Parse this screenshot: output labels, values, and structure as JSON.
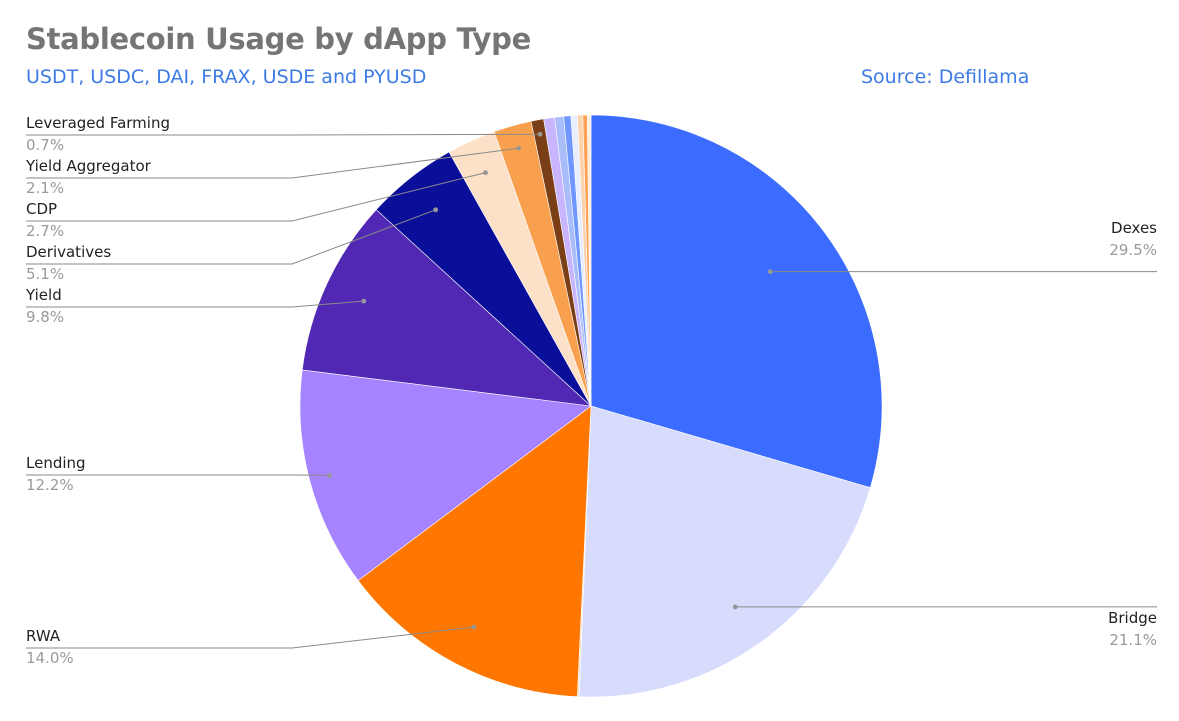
{
  "title": "Stablecoin Usage by dApp Type",
  "subtitle": "USDT, USDC, DAI, FRAX, USDE and PYUSD",
  "source": "Source: Defillama",
  "chart_data": {
    "type": "pie",
    "title": "Stablecoin Usage by dApp Type",
    "subtitle": "USDT, USDC, DAI, FRAX, USDE and PYUSD",
    "source": "Source: Defillama",
    "slices": [
      {
        "label": "Dexes",
        "value": 29.5,
        "pct_label": "29.5%",
        "color": "#3b6cff"
      },
      {
        "label": "Bridge",
        "value": 21.1,
        "pct_label": "21.1%",
        "color": "#d7dcfd"
      },
      {
        "label": "",
        "value": 0.1,
        "color": "#f7e1c8"
      },
      {
        "label": "RWA",
        "value": 14.0,
        "pct_label": "14.0%",
        "color": "#ff7700"
      },
      {
        "label": "Lending",
        "value": 12.2,
        "pct_label": "12.2%",
        "color": "#a683ff"
      },
      {
        "label": "Yield",
        "value": 9.8,
        "pct_label": "9.8%",
        "color": "#5128b4"
      },
      {
        "label": "Derivatives",
        "value": 5.1,
        "pct_label": "5.1%",
        "color": "#0a0f9a"
      },
      {
        "label": "CDP",
        "value": 2.7,
        "pct_label": "2.7%",
        "color": "#fde0c8"
      },
      {
        "label": "Yield Aggregator",
        "value": 2.1,
        "pct_label": "2.1%",
        "color": "#f8a04d"
      },
      {
        "label": "Leveraged Farming",
        "value": 0.7,
        "pct_label": "0.7%",
        "color": "#7a3f17"
      },
      {
        "label": "",
        "value": 0.6,
        "color": "#c8b4ff"
      },
      {
        "label": "",
        "value": 0.5,
        "color": "#aabdfb"
      },
      {
        "label": "",
        "value": 0.4,
        "color": "#6f97ff"
      },
      {
        "label": "",
        "value": 0.35,
        "color": "#e9eefe"
      },
      {
        "label": "",
        "value": 0.3,
        "color": "#fbd3ae"
      },
      {
        "label": "",
        "value": 0.25,
        "color": "#ffa255"
      },
      {
        "label": "",
        "value": 0.2,
        "color": "#fdeedd"
      }
    ],
    "start_angle_deg": 0,
    "direction": "clockwise",
    "legend": "none"
  }
}
